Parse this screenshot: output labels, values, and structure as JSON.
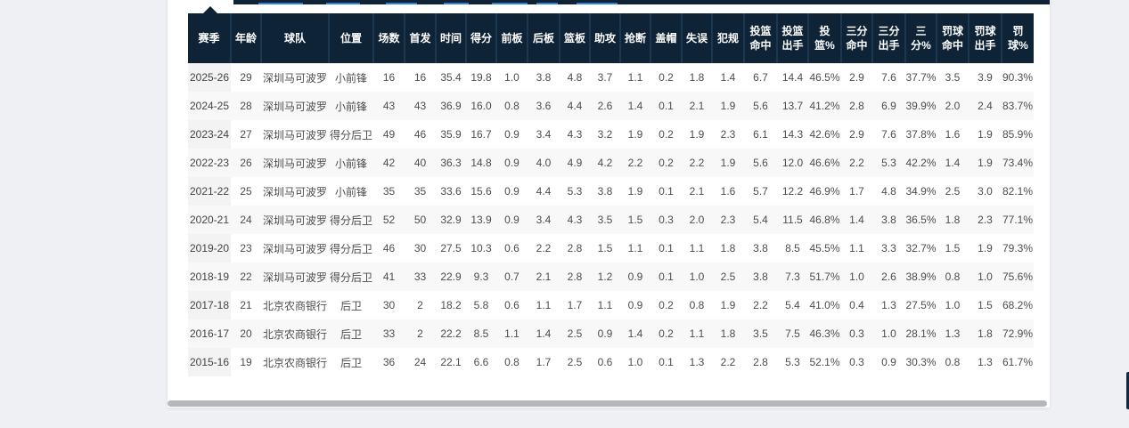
{
  "page": {
    "background_color": "#eef0f4",
    "accent_blue": "#2f80d9",
    "header_bg": "#0e2336",
    "stripe_color": "#f8f8f9",
    "season_col_color": "#f3f3f4"
  },
  "table": {
    "columns": [
      {
        "key": "season",
        "label": "赛季"
      },
      {
        "key": "age",
        "label": "年龄"
      },
      {
        "key": "team",
        "label": "球队"
      },
      {
        "key": "position",
        "label": "位置"
      },
      {
        "key": "games",
        "label": "场数"
      },
      {
        "key": "starts",
        "label": "首发"
      },
      {
        "key": "minutes",
        "label": "时间"
      },
      {
        "key": "points",
        "label": "得分"
      },
      {
        "key": "off-rebounds",
        "label": "前板"
      },
      {
        "key": "def-rebounds",
        "label": "后板"
      },
      {
        "key": "rebounds",
        "label": "篮板"
      },
      {
        "key": "assists",
        "label": "助攻"
      },
      {
        "key": "steals",
        "label": "抢断"
      },
      {
        "key": "blocks",
        "label": "盖帽"
      },
      {
        "key": "turnovers",
        "label": "失误"
      },
      {
        "key": "fouls",
        "label": "犯规"
      },
      {
        "key": "fg-made",
        "label": "投篮命中"
      },
      {
        "key": "fg-att",
        "label": "投篮出手"
      },
      {
        "key": "fg-pct",
        "label": "投篮%"
      },
      {
        "key": "tp-made",
        "label": "三分命中"
      },
      {
        "key": "tp-att",
        "label": "三分出手"
      },
      {
        "key": "tp-pct",
        "label": "三分%"
      },
      {
        "key": "ft-made",
        "label": "罚球命中"
      },
      {
        "key": "ft-att",
        "label": "罚球出手"
      },
      {
        "key": "ft-pct",
        "label": "罚球%"
      }
    ],
    "rows": [
      [
        "2025-26",
        "29",
        "深圳马可波罗",
        "小前锋",
        "16",
        "16",
        "35.4",
        "19.8",
        "1.0",
        "3.8",
        "4.8",
        "3.7",
        "1.1",
        "0.2",
        "1.8",
        "1.4",
        "6.7",
        "14.4",
        "46.5%",
        "2.9",
        "7.6",
        "37.7%",
        "3.5",
        "3.9",
        "90.3%"
      ],
      [
        "2024-25",
        "28",
        "深圳马可波罗",
        "小前锋",
        "43",
        "43",
        "36.9",
        "16.0",
        "0.8",
        "3.6",
        "4.4",
        "2.6",
        "1.4",
        "0.1",
        "2.1",
        "1.9",
        "5.6",
        "13.7",
        "41.2%",
        "2.8",
        "6.9",
        "39.9%",
        "2.0",
        "2.4",
        "83.7%"
      ],
      [
        "2023-24",
        "27",
        "深圳马可波罗",
        "得分后卫",
        "49",
        "46",
        "35.9",
        "16.7",
        "0.9",
        "3.4",
        "4.3",
        "3.2",
        "1.9",
        "0.2",
        "1.9",
        "2.3",
        "6.1",
        "14.3",
        "42.6%",
        "2.9",
        "7.6",
        "37.8%",
        "1.6",
        "1.9",
        "85.9%"
      ],
      [
        "2022-23",
        "26",
        "深圳马可波罗",
        "小前锋",
        "42",
        "40",
        "36.3",
        "14.8",
        "0.9",
        "4.0",
        "4.9",
        "4.2",
        "2.2",
        "0.2",
        "2.2",
        "1.9",
        "5.6",
        "12.0",
        "46.6%",
        "2.2",
        "5.3",
        "42.2%",
        "1.4",
        "1.9",
        "73.4%"
      ],
      [
        "2021-22",
        "25",
        "深圳马可波罗",
        "小前锋",
        "35",
        "35",
        "33.6",
        "15.6",
        "0.9",
        "4.4",
        "5.3",
        "3.8",
        "1.9",
        "0.1",
        "2.1",
        "1.6",
        "5.7",
        "12.2",
        "46.9%",
        "1.7",
        "4.8",
        "34.9%",
        "2.5",
        "3.0",
        "82.1%"
      ],
      [
        "2020-21",
        "24",
        "深圳马可波罗",
        "得分后卫",
        "52",
        "50",
        "32.9",
        "13.9",
        "0.9",
        "3.4",
        "4.3",
        "3.5",
        "1.5",
        "0.3",
        "2.0",
        "2.3",
        "5.4",
        "11.5",
        "46.8%",
        "1.4",
        "3.8",
        "36.5%",
        "1.8",
        "2.3",
        "77.1%"
      ],
      [
        "2019-20",
        "23",
        "深圳马可波罗",
        "得分后卫",
        "46",
        "30",
        "27.5",
        "10.3",
        "0.6",
        "2.2",
        "2.8",
        "1.5",
        "1.1",
        "0.1",
        "1.1",
        "1.8",
        "3.8",
        "8.5",
        "45.5%",
        "1.1",
        "3.3",
        "32.7%",
        "1.5",
        "1.9",
        "79.3%"
      ],
      [
        "2018-19",
        "22",
        "深圳马可波罗",
        "得分后卫",
        "41",
        "33",
        "22.9",
        "9.3",
        "0.7",
        "2.1",
        "2.8",
        "1.2",
        "0.9",
        "0.1",
        "1.0",
        "2.5",
        "3.8",
        "7.3",
        "51.7%",
        "1.0",
        "2.6",
        "38.9%",
        "0.8",
        "1.0",
        "75.6%"
      ],
      [
        "2017-18",
        "21",
        "北京农商银行",
        "后卫",
        "30",
        "2",
        "18.2",
        "5.8",
        "0.6",
        "1.1",
        "1.7",
        "1.1",
        "0.9",
        "0.2",
        "0.8",
        "1.9",
        "2.2",
        "5.4",
        "41.0%",
        "0.4",
        "1.3",
        "27.5%",
        "1.0",
        "1.5",
        "68.2%"
      ],
      [
        "2016-17",
        "20",
        "北京农商银行",
        "后卫",
        "33",
        "2",
        "22.2",
        "8.5",
        "1.1",
        "1.4",
        "2.5",
        "0.9",
        "1.4",
        "0.2",
        "1.1",
        "1.8",
        "3.5",
        "7.5",
        "46.3%",
        "0.3",
        "1.0",
        "28.1%",
        "1.3",
        "1.8",
        "72.9%"
      ],
      [
        "2015-16",
        "19",
        "北京农商银行",
        "后卫",
        "36",
        "24",
        "22.1",
        "6.6",
        "0.8",
        "1.7",
        "2.5",
        "0.6",
        "1.0",
        "0.1",
        "1.3",
        "2.2",
        "2.8",
        "5.3",
        "52.1%",
        "0.3",
        "0.9",
        "30.3%",
        "0.8",
        "1.3",
        "61.7%"
      ]
    ]
  }
}
